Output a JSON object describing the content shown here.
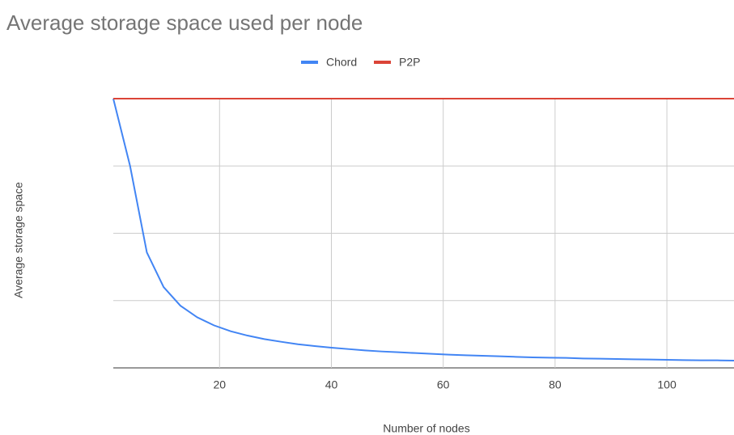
{
  "chart_data": {
    "type": "line",
    "title": "Average storage space used per node",
    "x_label": "Number of nodes",
    "y_label": "Average storage space",
    "x": [
      1,
      4,
      7,
      10,
      13,
      16,
      19,
      22,
      25,
      28,
      31,
      34,
      37,
      40,
      43,
      46,
      49,
      52,
      55,
      58,
      61,
      64,
      67,
      70,
      73,
      76,
      79,
      82,
      85,
      88,
      91,
      94,
      97,
      100,
      103,
      106,
      109,
      112
    ],
    "series": [
      {
        "name": "Chord",
        "color": "#4285f4",
        "values": [
          1,
          0.75,
          0.429,
          0.3,
          0.231,
          0.188,
          0.158,
          0.136,
          0.12,
          0.107,
          0.097,
          0.088,
          0.081,
          0.075,
          0.07,
          0.065,
          0.061,
          0.058,
          0.055,
          0.052,
          0.049,
          0.047,
          0.045,
          0.043,
          0.041,
          0.039,
          0.038,
          0.037,
          0.035,
          0.034,
          0.033,
          0.032,
          0.031,
          0.03,
          0.029,
          0.028,
          0.028,
          0.027
        ]
      },
      {
        "name": "P2P",
        "color": "#db4437",
        "values": [
          1,
          1,
          1,
          1,
          1,
          1,
          1,
          1,
          1,
          1,
          1,
          1,
          1,
          1,
          1,
          1,
          1,
          1,
          1,
          1,
          1,
          1,
          1,
          1,
          1,
          1,
          1,
          1,
          1,
          1,
          1,
          1,
          1,
          1,
          1,
          1,
          1,
          1
        ]
      }
    ],
    "xlim": [
      1,
      112
    ],
    "xticks": [
      20,
      40,
      60,
      80,
      100
    ],
    "ylim": [
      0,
      1
    ],
    "yticks": [
      0,
      0.25,
      0.5,
      0.75,
      1
    ],
    "grid": true,
    "legend": "top"
  }
}
